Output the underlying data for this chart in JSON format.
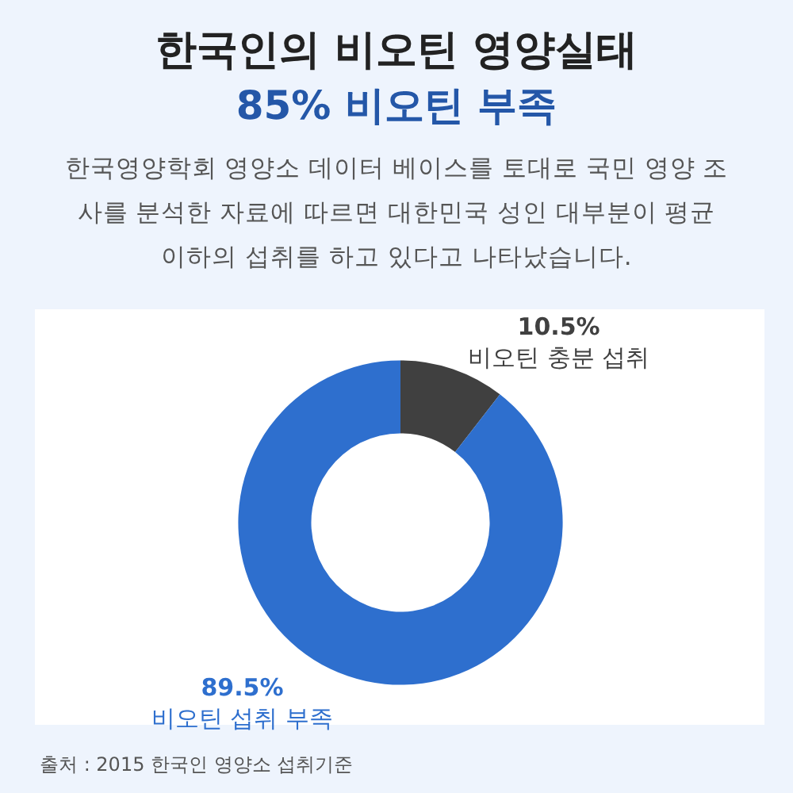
{
  "chart_data": {
    "type": "donut",
    "title": "한국인의 비오틴 영양실태",
    "subtitle": "85% 비오틴 부족",
    "annotations": [
      "한국영양학회 영양소 데이터 베이스를 토대로 국민 영양 조사를 분석한 자료에 따르면 대한민국 성인 대부분이 평균 이하의 섭취를 하고 있다고 나타났습니다.",
      "출처 : 2015 한국인 영양소 섭취기준"
    ],
    "categories": [
      "비오틴 충분 섭취",
      "비오틴 섭취 부족"
    ],
    "values": [
      10.5,
      89.5
    ],
    "value_labels": [
      "10.5%",
      "89.5%"
    ],
    "colors": [
      "#404040",
      "#2e6fce"
    ],
    "legend": false
  }
}
